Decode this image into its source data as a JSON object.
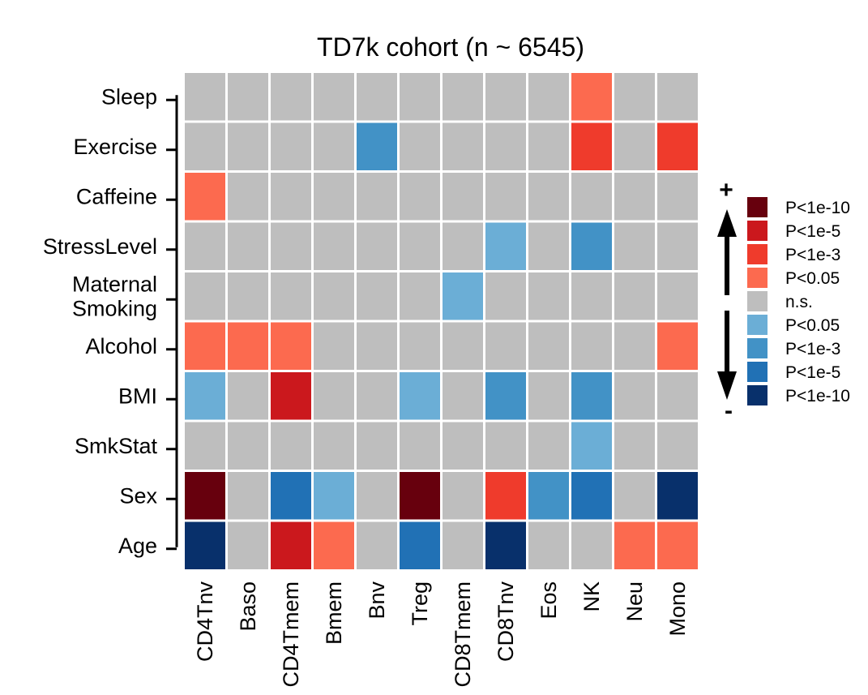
{
  "chart_data": {
    "type": "heatmap",
    "title": "TD7k cohort (n ~ 6545)",
    "rows": [
      "Sleep",
      "Exercise",
      "Caffeine",
      "StressLevel",
      "Maternal Smoking",
      "Alcohol",
      "BMI",
      "SmkStat",
      "Sex",
      "Age"
    ],
    "row_labels": [
      [
        "Sleep"
      ],
      [
        "Exercise"
      ],
      [
        "Caffeine"
      ],
      [
        "StressLevel"
      ],
      [
        "Maternal",
        "Smoking"
      ],
      [
        "Alcohol"
      ],
      [
        "BMI"
      ],
      [
        "SmkStat"
      ],
      [
        "Sex"
      ],
      [
        "Age"
      ]
    ],
    "columns": [
      "CD4Tnv",
      "Baso",
      "CD4Tmem",
      "Bmem",
      "Bnv",
      "Treg",
      "CD8Tmem",
      "CD8Tnv",
      "Eos",
      "NK",
      "Neu",
      "Mono"
    ],
    "scale": "signed significance level: +4 = P<1e-10 (positive) ... 0 = n.s. ... -4 = P<1e-10 (negative)",
    "values": [
      [
        0,
        0,
        0,
        0,
        0,
        0,
        0,
        0,
        0,
        1,
        0,
        0
      ],
      [
        0,
        0,
        0,
        0,
        -2,
        0,
        0,
        0,
        0,
        2,
        0,
        2
      ],
      [
        1,
        0,
        0,
        0,
        0,
        0,
        0,
        0,
        0,
        0,
        0,
        0
      ],
      [
        0,
        0,
        0,
        0,
        0,
        0,
        0,
        -1,
        0,
        -2,
        0,
        0
      ],
      [
        0,
        0,
        0,
        0,
        0,
        0,
        -1,
        0,
        0,
        0,
        0,
        0
      ],
      [
        1,
        1,
        1,
        0,
        0,
        0,
        0,
        0,
        0,
        0,
        0,
        1
      ],
      [
        -1,
        0,
        3,
        0,
        0,
        -1,
        0,
        -2,
        0,
        -2,
        0,
        0
      ],
      [
        0,
        0,
        0,
        0,
        0,
        0,
        0,
        0,
        0,
        -1,
        0,
        0
      ],
      [
        4,
        0,
        -3,
        -1,
        0,
        4,
        0,
        2,
        -2,
        -3,
        0,
        -4
      ],
      [
        -4,
        0,
        3,
        1,
        0,
        -3,
        0,
        -4,
        0,
        0,
        1,
        1
      ]
    ],
    "legend": [
      {
        "level": 4,
        "label": "P<1e-10",
        "color": "#67000d"
      },
      {
        "level": 3,
        "label": "P<1e-5",
        "color": "#cb181d"
      },
      {
        "level": 2,
        "label": "P<1e-3",
        "color": "#ef3b2c"
      },
      {
        "level": 1,
        "label": "P<0.05",
        "color": "#fc6a4f"
      },
      {
        "level": 0,
        "label": "n.s.",
        "color": "#bebebe"
      },
      {
        "level": -1,
        "label": "P<0.05",
        "color": "#6baed6"
      },
      {
        "level": -2,
        "label": "P<1e-3",
        "color": "#4292c6"
      },
      {
        "level": -3,
        "label": "P<1e-5",
        "color": "#2171b5"
      },
      {
        "level": -4,
        "label": "P<1e-10",
        "color": "#08306b"
      }
    ],
    "direction_labels": {
      "positive": "+",
      "negative": "-"
    }
  }
}
